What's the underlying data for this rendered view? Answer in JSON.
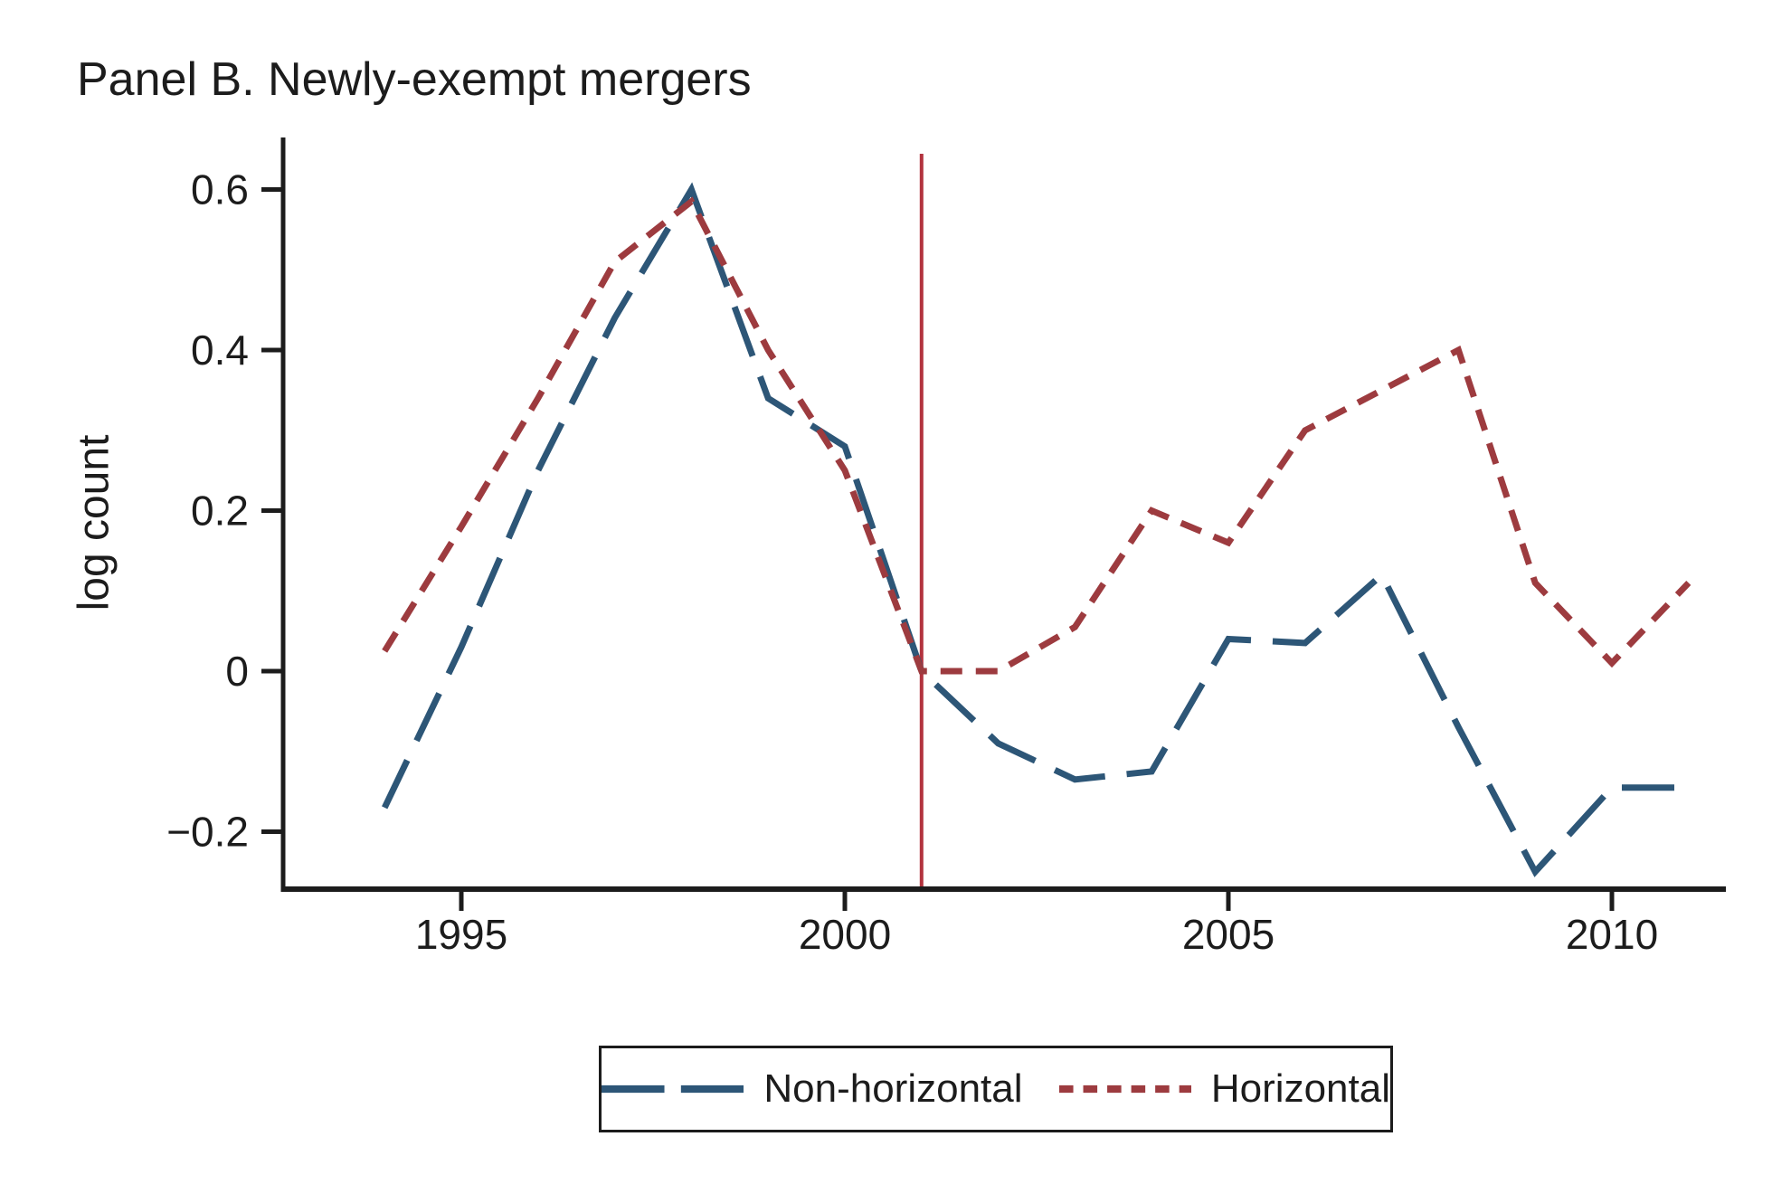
{
  "title": "Panel B. Newly-exempt mergers",
  "y_axis_label": "log count",
  "colors": {
    "non_horizontal": "#2d5677",
    "horizontal": "#9d3b3f",
    "event_line": "#b2333e",
    "axis": "#1c1c1c",
    "background": "#ffffff"
  },
  "legend": {
    "items": [
      {
        "label": "Non-horizontal",
        "color": "#2d5677",
        "dash": "long"
      },
      {
        "label": "Horizontal",
        "color": "#9d3b3f",
        "dash": "short"
      }
    ]
  },
  "chart_data": {
    "type": "line",
    "title": "Panel B. Newly-exempt mergers",
    "xlabel": "",
    "ylabel": "log count",
    "x": [
      1994,
      1995,
      1996,
      1997,
      1998,
      1999,
      2000,
      2001,
      2002,
      2003,
      2004,
      2005,
      2006,
      2007,
      2008,
      2009,
      2010,
      2011
    ],
    "series": [
      {
        "name": "Non-horizontal",
        "color": "#2d5677",
        "dash": "long",
        "values": [
          -0.17,
          0.03,
          0.25,
          0.44,
          0.6,
          0.34,
          0.28,
          0.0,
          -0.09,
          -0.135,
          -0.125,
          0.04,
          0.035,
          0.12,
          -0.07,
          -0.25,
          -0.145,
          -0.145
        ]
      },
      {
        "name": "Horizontal",
        "color": "#9d3b3f",
        "dash": "short",
        "values": [
          0.025,
          0.18,
          0.34,
          0.51,
          0.585,
          0.4,
          0.25,
          0.0,
          0.0,
          0.055,
          0.2,
          0.16,
          0.3,
          0.35,
          0.4,
          0.11,
          0.01,
          0.11
        ]
      }
    ],
    "vline": {
      "x": 2001,
      "color": "#b2333e"
    },
    "x_ticks": [
      {
        "value": 1995,
        "label": "1995"
      },
      {
        "value": 2000,
        "label": "2000"
      },
      {
        "value": 2005,
        "label": "2005"
      },
      {
        "value": 2010,
        "label": "2010"
      }
    ],
    "y_ticks": [
      {
        "value": 0.6,
        "label": "0.6"
      },
      {
        "value": 0.4,
        "label": "0.4"
      },
      {
        "value": 0.2,
        "label": "0.2"
      },
      {
        "value": 0,
        "label": "0"
      },
      {
        "value": -0.2,
        "label": "−0.2"
      }
    ],
    "xlim": [
      1992.7,
      2011.5
    ],
    "ylim": [
      -0.27,
      0.66
    ],
    "grid": false,
    "legend_position": "bottom"
  }
}
